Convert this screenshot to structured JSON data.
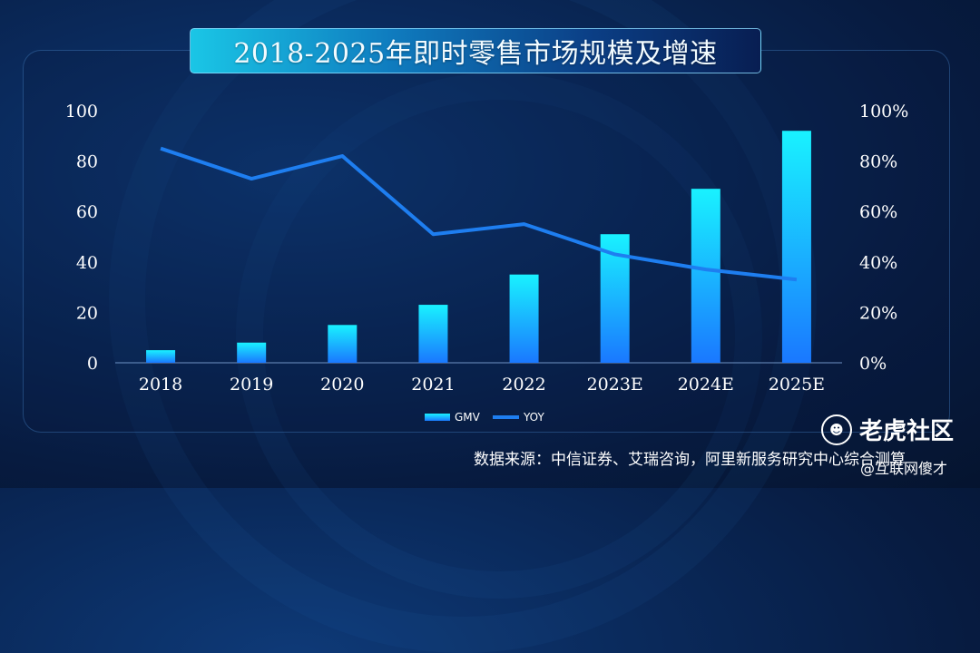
{
  "title": "2018-2025年即时零售市场规模及增速",
  "source_note": "数据来源：中信证券、艾瑞咨询，阿里新服务研究中心综合测算",
  "watermark": {
    "brand": "老虎社区",
    "handle": "@互联网傻才",
    "icon": "tiger-icon"
  },
  "colors": {
    "bar_top": "#19f2ff",
    "bar_bottom": "#1a78ff",
    "line": "#1e7ef0",
    "axis_text": "#ffffff"
  },
  "chart_data": {
    "type": "bar",
    "categories": [
      "2018",
      "2019",
      "2020",
      "2021",
      "2022",
      "2023E",
      "2024E",
      "2025E"
    ],
    "series": [
      {
        "name": "GMV",
        "type": "bar",
        "axis": "left",
        "values": [
          5,
          8,
          15,
          23,
          35,
          51,
          69,
          92
        ]
      },
      {
        "name": "YOY",
        "type": "line",
        "axis": "right",
        "values": [
          85,
          73,
          82,
          51,
          55,
          43,
          37,
          33
        ]
      }
    ],
    "y_left": {
      "ticks": [
        "0",
        "20",
        "40",
        "60",
        "80",
        "100"
      ],
      "range": [
        0,
        100
      ]
    },
    "y_right": {
      "ticks": [
        "0%",
        "20%",
        "40%",
        "60%",
        "80%",
        "100%"
      ],
      "range": [
        0,
        100
      ]
    },
    "legend": {
      "position": "bottom-center"
    },
    "grid": false
  }
}
